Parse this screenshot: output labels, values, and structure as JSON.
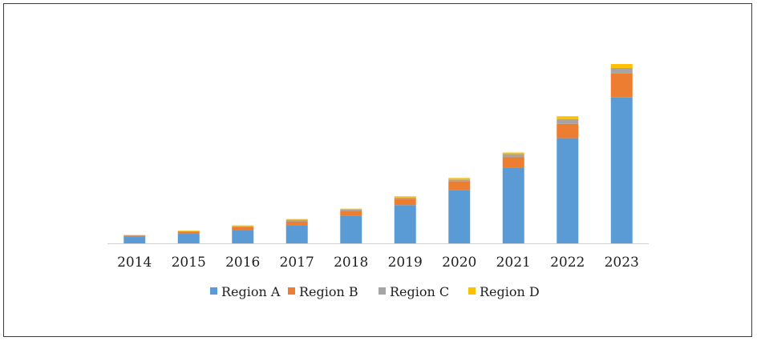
{
  "chart_data": {
    "type": "bar",
    "stacked": true,
    "title": "",
    "xlabel": "",
    "ylabel": "",
    "y_axis_visible": false,
    "grid": false,
    "legend_position": "bottom",
    "ylim": [
      0,
      225
    ],
    "categories": [
      "2014",
      "2015",
      "2016",
      "2017",
      "2018",
      "2019",
      "2020",
      "2021",
      "2022",
      "2023"
    ],
    "series": [
      {
        "name": "Region A",
        "color": "#5B9BD5",
        "values": [
          8,
          12,
          17,
          23,
          35,
          48,
          67,
          95,
          132,
          183
        ]
      },
      {
        "name": "Region B",
        "color": "#ED7D31",
        "values": [
          1.5,
          2.5,
          3.5,
          4.5,
          6,
          8,
          11,
          13,
          18,
          30
        ]
      },
      {
        "name": "Region C",
        "color": "#A5A5A5",
        "values": [
          0.5,
          0.8,
          1,
          2,
          1.5,
          1.5,
          2,
          4,
          6,
          7
        ]
      },
      {
        "name": "Region D",
        "color": "#FFC000",
        "values": [
          0.5,
          0.7,
          1,
          1,
          1,
          1.5,
          2,
          2,
          3.5,
          5
        ]
      }
    ]
  }
}
